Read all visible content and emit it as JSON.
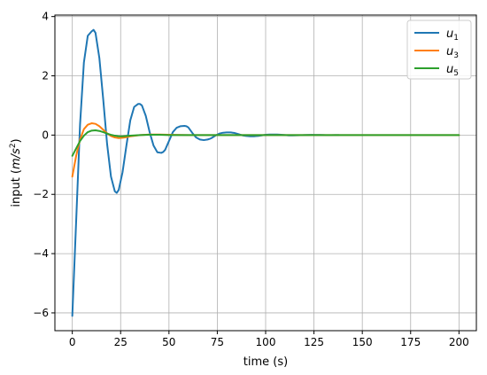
{
  "chart_data": {
    "type": "line",
    "xlabel": "time (s)",
    "ylabel_main": "input (",
    "ylabel_unit_m": "m",
    "ylabel_unit_rest": "/s",
    "ylabel_exp": "2",
    "ylabel_close": ")",
    "xlim": [
      -9,
      209
    ],
    "ylim": [
      -6.6,
      4.05
    ],
    "x_ticks": [
      0,
      25,
      50,
      75,
      100,
      125,
      150,
      175,
      200
    ],
    "y_ticks": [
      -6,
      -4,
      -2,
      0,
      2,
      4
    ],
    "y_tick_labels": [
      "−6",
      "−4",
      "−2",
      "0",
      "2",
      "4"
    ],
    "grid": true,
    "legend_position": "top-right",
    "series": [
      {
        "name": "u1",
        "label_base": "u",
        "label_sub": "1",
        "color": "#1f77b4",
        "x": [
          0,
          2,
          4,
          6,
          8,
          10,
          11,
          12,
          14,
          16,
          18,
          20,
          22,
          23,
          24,
          26,
          28,
          30,
          32,
          34,
          35,
          36,
          38,
          40,
          42,
          44,
          46,
          47,
          48,
          50,
          52,
          54,
          56,
          58,
          59,
          60,
          62,
          64,
          66,
          68,
          70,
          71,
          72,
          74,
          76,
          78,
          80,
          82,
          83,
          84,
          86,
          88,
          90,
          92,
          94,
          95,
          96,
          98,
          100,
          102,
          104,
          106,
          107,
          108,
          110,
          112,
          114,
          116,
          118,
          119,
          120,
          122,
          124,
          126,
          128,
          130,
          131,
          132,
          134,
          136,
          138
        ],
        "y": [
          -6.1,
          -2.9,
          0.35,
          2.45,
          3.35,
          3.5,
          3.55,
          3.45,
          2.6,
          1.2,
          -0.3,
          -1.4,
          -1.9,
          -1.95,
          -1.85,
          -1.25,
          -0.35,
          0.5,
          0.95,
          1.05,
          1.05,
          1.0,
          0.65,
          0.1,
          -0.35,
          -0.58,
          -0.6,
          -0.57,
          -0.5,
          -0.2,
          0.1,
          0.25,
          0.3,
          0.31,
          0.3,
          0.26,
          0.08,
          -0.08,
          -0.15,
          -0.17,
          -0.15,
          -0.13,
          -0.1,
          -0.02,
          0.05,
          0.08,
          0.09,
          0.09,
          0.08,
          0.07,
          0.03,
          -0.01,
          -0.03,
          -0.04,
          -0.04,
          -0.035,
          -0.03,
          -0.01,
          0.01,
          0.02,
          0.02,
          0.02,
          0.015,
          0.01,
          0.0,
          -0.01,
          -0.01,
          -0.008,
          -0.005,
          -0.004,
          0.0,
          0.005,
          0.006,
          0.005,
          0.003,
          0.0,
          -0.002,
          -0.002,
          -0.002,
          0.0,
          0.0
        ]
      },
      {
        "name": "u3",
        "label_base": "u",
        "label_sub": "3",
        "color": "#ff7f0e",
        "x": [
          0,
          2,
          4,
          6,
          8,
          10,
          12,
          14,
          16,
          18,
          20,
          22,
          24,
          26,
          28,
          30,
          35,
          40,
          45,
          50,
          60,
          70,
          80,
          100,
          125,
          150,
          175,
          200
        ],
        "y": [
          -1.4,
          -0.7,
          -0.15,
          0.2,
          0.35,
          0.4,
          0.38,
          0.3,
          0.18,
          0.06,
          -0.03,
          -0.08,
          -0.1,
          -0.09,
          -0.07,
          -0.04,
          0.0,
          0.02,
          0.02,
          0.01,
          0.0,
          0.0,
          0.0,
          0.0,
          0.0,
          0.0,
          0.0,
          0.0
        ]
      },
      {
        "name": "u5",
        "label_base": "u",
        "label_sub": "5",
        "color": "#2ca02c",
        "x": [
          0,
          2,
          4,
          6,
          8,
          10,
          12,
          14,
          16,
          18,
          20,
          22,
          24,
          26,
          28,
          30,
          35,
          40,
          45,
          50,
          60,
          70,
          80,
          100,
          125,
          150,
          175,
          200
        ],
        "y": [
          -0.7,
          -0.45,
          -0.2,
          -0.02,
          0.1,
          0.15,
          0.16,
          0.14,
          0.1,
          0.05,
          0.01,
          -0.02,
          -0.04,
          -0.04,
          -0.03,
          -0.02,
          0.0,
          0.01,
          0.01,
          0.0,
          0.0,
          0.0,
          0.0,
          0.0,
          0.0,
          0.0,
          0.0,
          0.0
        ]
      }
    ]
  }
}
